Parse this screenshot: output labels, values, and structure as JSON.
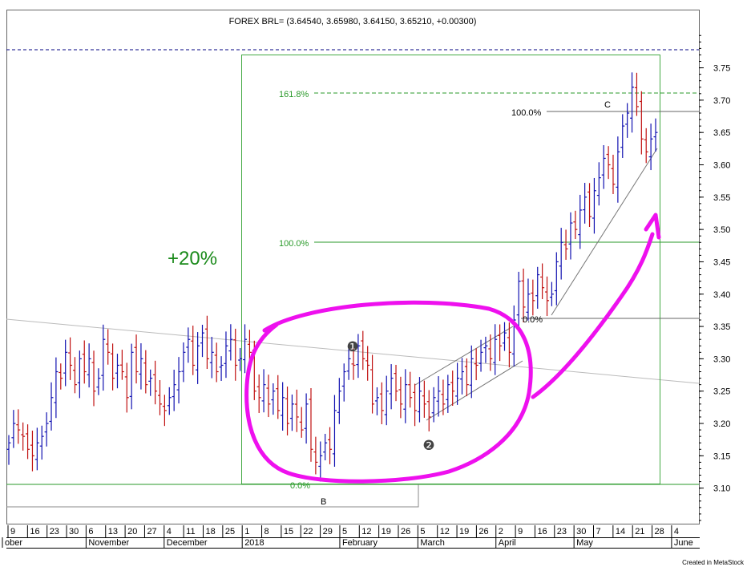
{
  "chart_data": {
    "type": "ohlc",
    "title": "FOREX BRL= (3.64540, 3.65980, 3.64150, 3.65210, +0.00300)",
    "ylim": [
      3.045,
      3.84
    ],
    "yticks": [
      3.1,
      3.15,
      3.2,
      3.25,
      3.3,
      3.35,
      3.4,
      3.45,
      3.5,
      3.55,
      3.6,
      3.65,
      3.7,
      3.75
    ],
    "day_ticks": [
      "9",
      "16",
      "23",
      "30",
      "6",
      "13",
      "20",
      "27",
      "4",
      "11",
      "18",
      "25",
      "1",
      "8",
      "15",
      "22",
      "29",
      "5",
      "12",
      "19",
      "26",
      "5",
      "12",
      "19",
      "26",
      "2",
      "9",
      "16",
      "23",
      "30",
      "7",
      "14",
      "21",
      "28",
      "4"
    ],
    "months": [
      {
        "label": "ober",
        "tick": 0
      },
      {
        "label": "November",
        "tick": 4
      },
      {
        "label": "December",
        "tick": 8
      },
      {
        "label": "2018",
        "tick": 12
      },
      {
        "label": "February",
        "tick": 17
      },
      {
        "label": "March",
        "tick": 21
      },
      {
        "label": "April",
        "tick": 25
      },
      {
        "label": "May",
        "tick": 29
      },
      {
        "label": "June",
        "tick": 34
      }
    ],
    "close_prices": [
      3.17,
      3.2,
      3.19,
      3.18,
      3.16,
      3.15,
      3.17,
      3.18,
      3.2,
      3.24,
      3.28,
      3.27,
      3.31,
      3.29,
      3.26,
      3.3,
      3.28,
      3.3,
      3.25,
      3.27,
      3.33,
      3.31,
      3.27,
      3.29,
      3.28,
      3.24,
      3.31,
      3.28,
      3.3,
      3.26,
      3.27,
      3.25,
      3.23,
      3.22,
      3.24,
      3.26,
      3.28,
      3.31,
      3.33,
      3.29,
      3.32,
      3.34,
      3.3,
      3.31,
      3.28,
      3.29,
      3.32,
      3.33,
      3.29,
      3.3,
      3.33,
      3.31,
      3.25,
      3.24,
      3.26,
      3.23,
      3.25,
      3.22,
      3.24,
      3.2,
      3.23,
      3.21,
      3.19,
      3.23,
      3.16,
      3.14,
      3.15,
      3.17,
      3.16,
      3.22,
      3.25,
      3.28,
      3.3,
      3.29,
      3.32,
      3.3,
      3.29,
      3.23,
      3.24,
      3.22,
      3.25,
      3.27,
      3.25,
      3.23,
      3.26,
      3.24,
      3.22,
      3.25,
      3.23,
      3.21,
      3.24,
      3.25,
      3.23,
      3.26,
      3.25,
      3.27,
      3.28,
      3.26,
      3.3,
      3.29,
      3.31,
      3.32,
      3.3,
      3.33,
      3.32,
      3.34,
      3.31,
      3.36,
      3.42,
      3.38,
      3.4,
      3.39,
      3.43,
      3.41,
      3.39,
      3.4,
      3.45,
      3.48,
      3.47,
      3.51,
      3.5,
      3.53,
      3.55,
      3.52,
      3.56,
      3.58,
      3.61,
      3.6,
      3.57,
      3.62,
      3.66,
      3.68,
      3.72,
      3.69,
      3.64,
      3.62,
      3.64,
      3.65
    ],
    "annotations": {
      "big_label": "+20%",
      "fib_labels": [
        "161.8%",
        "100.0%",
        "0.0%"
      ],
      "fib_levels": [
        3.722,
        3.492,
        3.123
      ],
      "inner_fib_labels": [
        "100.0%",
        "0.0%"
      ],
      "inner_fib_levels": [
        3.693,
        3.375
      ],
      "wave_labels": [
        "C",
        "B"
      ],
      "wave_numbers": [
        "❶",
        "❷"
      ],
      "dashed_top_level": 3.787
    },
    "footer": "Created in MetaStock",
    "colors": {
      "up_bar": "#1010b0",
      "down_bar": "#c01010",
      "fib_green": "#2a9a2a",
      "box_green": "#44aa44",
      "magenta": "#ee10ee",
      "dashed_navy": "#000080"
    }
  }
}
